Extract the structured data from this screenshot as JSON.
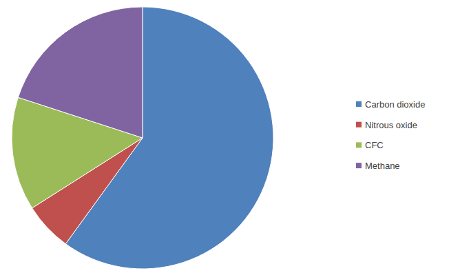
{
  "chart_data": {
    "type": "pie",
    "categories": [
      "Carbon dioxide",
      "Nitrous oxide",
      "CFC",
      "Methane"
    ],
    "values": [
      60,
      6,
      14,
      20
    ],
    "colors": [
      "#4f81bd",
      "#c0504d",
      "#9bbb59",
      "#8064a2"
    ],
    "legend": "right"
  }
}
